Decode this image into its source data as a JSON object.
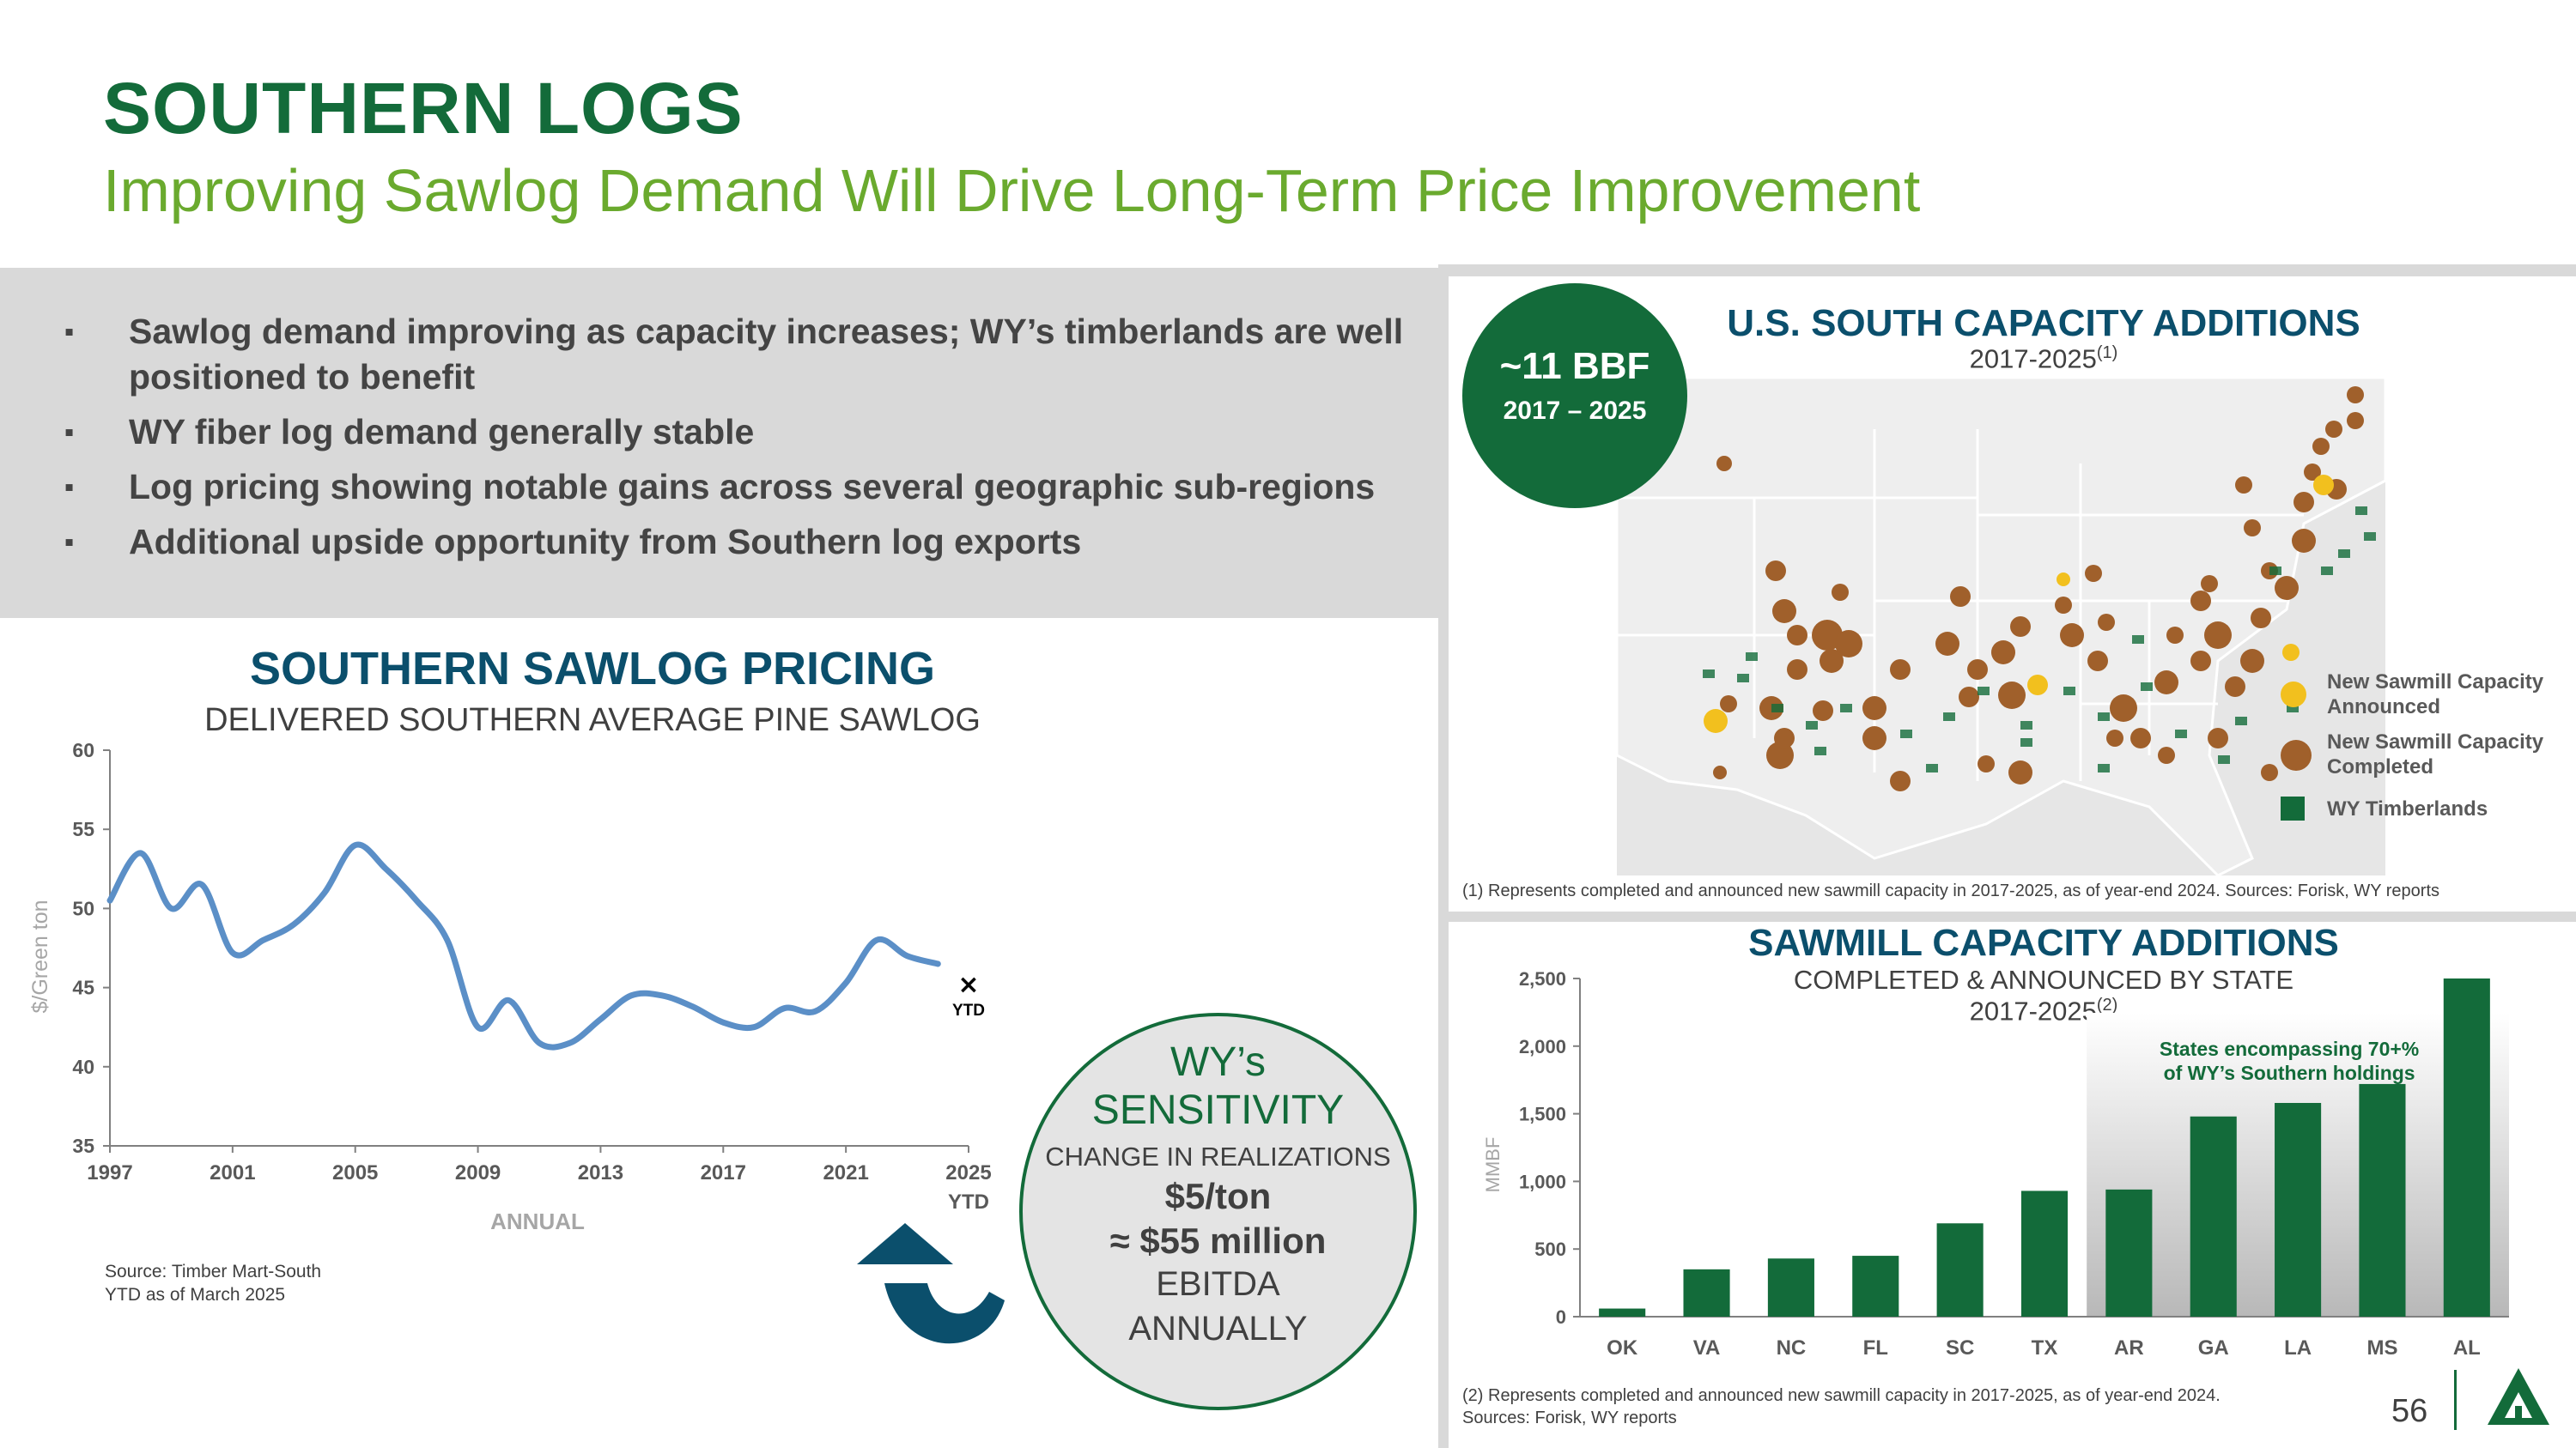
{
  "header": {
    "title": "SOUTHERN LOGS",
    "subtitle": "Improving Sawlog Demand Will Drive Long-Term Price Improvement"
  },
  "bullets": [
    "Sawlog demand improving as capacity increases; WY’s timberlands are well positioned to benefit",
    "WY fiber log demand generally stable",
    "Log pricing showing notable gains across several geographic sub-regions",
    "Additional upside opportunity from Southern log exports"
  ],
  "pricing": {
    "title": "SOUTHERN SAWLOG PRICING",
    "subtitle": "DELIVERED SOUTHERN AVERAGE PINE SAWLOG",
    "source": "Source: Timber Mart-South\nYTD as of March 2025"
  },
  "sensitivity": {
    "title_line1": "WY’s",
    "title_line2": "SENSITIVITY",
    "line1": "CHANGE IN REALIZATIONS",
    "line2": "$5/ton",
    "line3": "≈ $55 million",
    "line4": "EBITDA",
    "line5": "ANNUALLY"
  },
  "capacity_map": {
    "badge_value": "~11 BBF",
    "badge_years": "2017 – 2025",
    "title": "U.S. SOUTH CAPACITY ADDITIONS",
    "subtitle": "2017-2025",
    "subtitle_note": "(1)",
    "legend": {
      "announced": "New Sawmill Capacity Announced",
      "completed": "New Sawmill Capacity Completed",
      "timberlands": "WY Timberlands"
    },
    "footnote": "(1) Represents completed and announced new sawmill capacity in 2017-2025, as of year-end 2024. Sources: Forisk, WY reports",
    "colors": {
      "announced": "#f2c01e",
      "completed": "#a0602b",
      "timberlands": "#136b3a"
    }
  },
  "sawmill": {
    "title": "SAWMILL CAPACITY ADDITIONS",
    "subtitle": "COMPLETED & ANNOUNCED BY STATE",
    "subtitle2": "2017-2025",
    "subtitle2_note": "(2)",
    "footnote": "(2) Represents completed and announced new sawmill capacity in 2017-2025, as of year-end 2024.\nSources: Forisk, WY reports"
  },
  "page_number": "56",
  "chart_data": [
    {
      "type": "line",
      "ylabel": "$/Green ton",
      "xlabel": "ANNUAL",
      "ylim": [
        35,
        60
      ],
      "yticks": [
        35,
        40,
        45,
        50,
        55,
        60
      ],
      "xlim": [
        1997,
        2025
      ],
      "xticks": [
        "1997",
        "2001",
        "2005",
        "2009",
        "2013",
        "2017",
        "2021",
        "2025"
      ],
      "xtick_sub": "YTD",
      "x": [
        1997,
        1998,
        1999,
        2000,
        2001,
        2002,
        2003,
        2004,
        2005,
        2006,
        2007,
        2008,
        2009,
        2010,
        2011,
        2012,
        2013,
        2014,
        2015,
        2016,
        2017,
        2018,
        2019,
        2020,
        2021,
        2022,
        2023,
        2024
      ],
      "series": [
        {
          "values": [
            50.5,
            53.5,
            50,
            51.5,
            47.2,
            48,
            49,
            51,
            54,
            52.5,
            50.5,
            48,
            42.5,
            44.2,
            41.5,
            41.5,
            43,
            44.5,
            44.5,
            43.8,
            42.8,
            42.5,
            43.7,
            43.5,
            45.3,
            48,
            47,
            46.5
          ]
        }
      ],
      "ytd_marker": {
        "x": 2025,
        "y": 45.2,
        "label": "YTD",
        "symbol": "×"
      },
      "line_color": "#5b8fc7"
    },
    {
      "type": "bar",
      "ylabel": "MMBF",
      "ylim": [
        0,
        2500
      ],
      "yticks": [
        "0",
        "500",
        "1,000",
        "1,500",
        "2,000",
        "2,500"
      ],
      "categories": [
        "OK",
        "VA",
        "NC",
        "FL",
        "SC",
        "TX",
        "AR",
        "GA",
        "LA",
        "MS",
        "AL"
      ],
      "values": [
        60,
        350,
        430,
        450,
        690,
        930,
        940,
        1480,
        1580,
        1720,
        2500
      ],
      "bar_color": "#136b3a",
      "annotation": "States encompassing 70+% of WY’s Southern holdings",
      "annotation_color": "#136b3a",
      "highlight_from": "AR"
    }
  ]
}
